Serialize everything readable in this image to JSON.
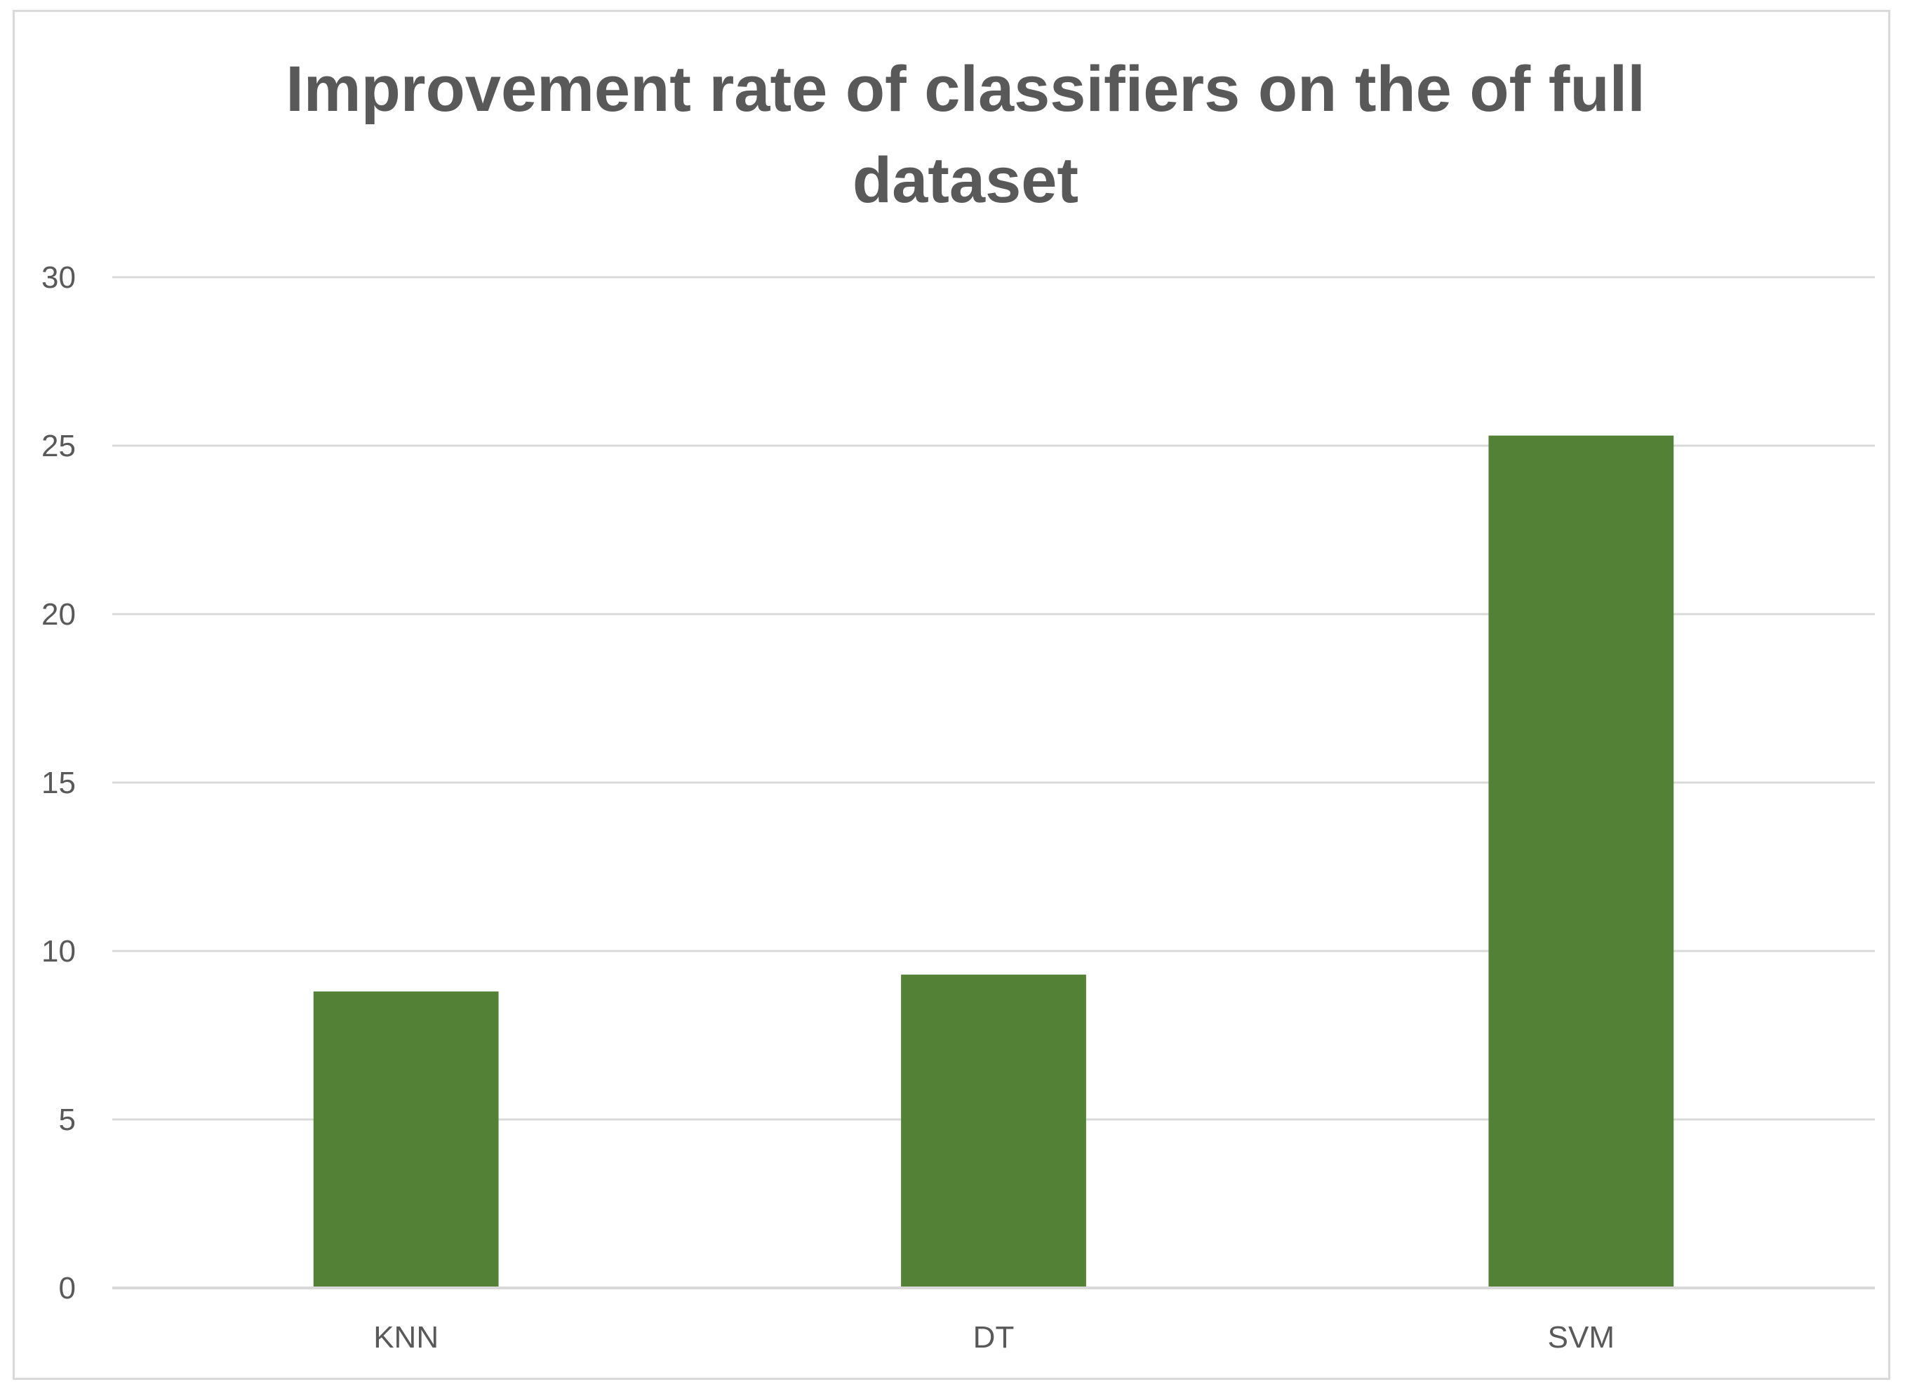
{
  "chart_data": {
    "type": "bar",
    "title": "Improvement rate of classifiers on the of full dataset",
    "title_lines": [
      "Improvement rate of classifiers on the of full",
      "dataset"
    ],
    "categories": [
      "KNN",
      "DT",
      "SVM"
    ],
    "values": [
      8.8,
      9.3,
      25.3
    ],
    "xlabel": "",
    "ylabel": "",
    "ylim": [
      0,
      30
    ],
    "yticks": [
      0,
      5,
      10,
      15,
      20,
      25,
      30
    ],
    "grid": true,
    "legend": "none",
    "bar_color": "#538135",
    "gridline_color": "#d9d9d9",
    "text_color": "#595959"
  }
}
